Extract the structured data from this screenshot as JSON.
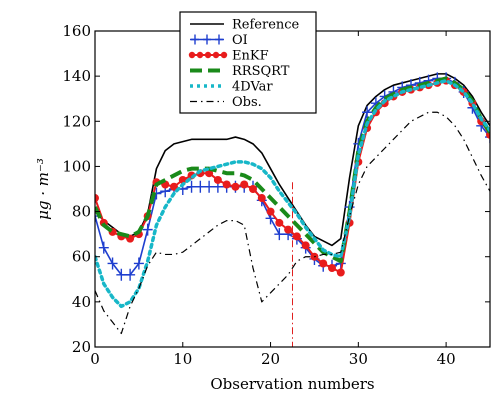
{
  "chart_data": {
    "type": "line",
    "xlabel": "Observation numbers",
    "ylabel": "μg · m⁻³",
    "xlim": [
      0,
      45
    ],
    "ylim": [
      20,
      160
    ],
    "x_ticks": [
      0,
      10,
      20,
      30,
      40
    ],
    "y_ticks": [
      20,
      40,
      60,
      80,
      100,
      120,
      140,
      160
    ],
    "legend_position": "top-center",
    "vertical_marker_x": 22.5,
    "series": [
      {
        "name": "Reference",
        "color": "#000000",
        "style": "solid",
        "marker": "none",
        "x": [
          0,
          1,
          2,
          3,
          4,
          5,
          6,
          7,
          8,
          9,
          10,
          11,
          12,
          13,
          14,
          15,
          16,
          17,
          18,
          19,
          20,
          21,
          22,
          23,
          24,
          25,
          26,
          27,
          28,
          29,
          30,
          31,
          32,
          33,
          34,
          35,
          36,
          37,
          38,
          39,
          40,
          41,
          42,
          43,
          44,
          45
        ],
        "y": [
          80,
          76,
          73,
          70,
          69,
          71,
          79,
          99,
          107,
          110,
          111,
          112,
          112,
          112,
          112,
          112,
          113,
          112,
          110,
          106,
          99,
          92,
          86,
          80,
          74,
          69,
          67,
          65,
          68,
          95,
          118,
          127,
          131,
          134,
          136,
          137,
          138,
          139,
          140,
          141,
          141,
          139,
          136,
          131,
          124,
          118
        ]
      },
      {
        "name": "OI",
        "color": "#1f3fcf",
        "style": "solid",
        "marker": "plus",
        "x": [
          0,
          1,
          2,
          3,
          4,
          5,
          6,
          7,
          8,
          9,
          10,
          11,
          12,
          13,
          14,
          15,
          16,
          17,
          18,
          19,
          20,
          21,
          22,
          23,
          24,
          25,
          26,
          27,
          28,
          29,
          30,
          31,
          32,
          33,
          34,
          35,
          36,
          37,
          38,
          39,
          40,
          41,
          42,
          43,
          44,
          45
        ],
        "y": [
          78,
          64,
          57,
          52,
          52,
          57,
          72,
          88,
          89,
          90,
          90,
          91,
          91,
          91,
          91,
          91,
          91,
          91,
          91,
          85,
          77,
          70,
          70,
          68,
          64,
          59,
          56,
          56,
          57,
          82,
          110,
          124,
          128,
          131,
          133,
          135,
          136,
          137,
          138,
          139,
          139,
          137,
          133,
          126,
          118,
          113
        ]
      },
      {
        "name": "EnKF",
        "color": "#e81c1c",
        "style": "solid",
        "marker": "dot",
        "x": [
          0,
          1,
          2,
          3,
          4,
          5,
          6,
          7,
          8,
          9,
          10,
          11,
          12,
          13,
          14,
          15,
          16,
          17,
          18,
          19,
          20,
          21,
          22,
          23,
          24,
          25,
          26,
          27,
          28,
          29,
          30,
          31,
          32,
          33,
          34,
          35,
          36,
          37,
          38,
          39,
          40,
          41,
          42,
          43,
          44,
          45
        ],
        "y": [
          86,
          75,
          71,
          69,
          68,
          70,
          78,
          93,
          92,
          91,
          94,
          96,
          97,
          97,
          94,
          92,
          91,
          92,
          90,
          86,
          80,
          75,
          72,
          69,
          65,
          60,
          57,
          55,
          53,
          75,
          102,
          117,
          124,
          128,
          131,
          133,
          134,
          135,
          136,
          137,
          138,
          136,
          133,
          128,
          120,
          114
        ]
      },
      {
        "name": "RRSQRT",
        "color": "#1a8a1a",
        "style": "dashed",
        "marker": "none",
        "x": [
          0,
          1,
          2,
          3,
          4,
          5,
          6,
          7,
          8,
          9,
          10,
          11,
          12,
          13,
          14,
          15,
          16,
          17,
          18,
          19,
          20,
          21,
          22,
          23,
          24,
          25,
          26,
          27,
          28,
          29,
          30,
          31,
          32,
          33,
          34,
          35,
          36,
          37,
          38,
          39,
          40,
          41,
          42,
          43,
          44,
          45
        ],
        "y": [
          82,
          74,
          71,
          70,
          69,
          71,
          78,
          92,
          94,
          96,
          98,
          99,
          99,
          99,
          98,
          97,
          97,
          96,
          94,
          90,
          86,
          82,
          78,
          74,
          70,
          66,
          62,
          60,
          58,
          80,
          107,
          120,
          126,
          130,
          132,
          134,
          135,
          136,
          137,
          138,
          139,
          137,
          134,
          129,
          121,
          115
        ]
      },
      {
        "name": "4DVar",
        "color": "#17b7c8",
        "style": "dotted",
        "marker": "none",
        "x": [
          0,
          1,
          2,
          3,
          4,
          5,
          6,
          7,
          8,
          9,
          10,
          11,
          12,
          13,
          14,
          15,
          16,
          17,
          18,
          19,
          20,
          21,
          22,
          23,
          24,
          25,
          26,
          27,
          28,
          29,
          30,
          31,
          32,
          33,
          34,
          35,
          36,
          37,
          38,
          39,
          40,
          41,
          42,
          43,
          44,
          45
        ],
        "y": [
          60,
          48,
          42,
          38,
          40,
          46,
          58,
          74,
          82,
          88,
          92,
          95,
          98,
          99,
          100,
          101,
          102,
          102,
          101,
          99,
          95,
          89,
          84,
          79,
          73,
          68,
          63,
          61,
          60,
          78,
          105,
          119,
          125,
          129,
          131,
          133,
          134,
          135,
          136,
          137,
          138,
          136,
          133,
          128,
          121,
          116
        ]
      },
      {
        "name": "Obs.",
        "color": "#000000",
        "style": "dashdot",
        "marker": "none",
        "x": [
          0,
          1,
          2,
          3,
          4,
          5,
          6,
          7,
          8,
          9,
          10,
          11,
          12,
          13,
          14,
          15,
          16,
          17,
          18,
          19,
          20,
          21,
          22,
          23,
          24,
          25,
          26,
          27,
          28,
          29,
          30,
          31,
          32,
          33,
          34,
          35,
          36,
          37,
          38,
          39,
          40,
          41,
          42,
          43,
          44,
          45
        ],
        "y": [
          45,
          36,
          31,
          26,
          38,
          46,
          56,
          62,
          61,
          61,
          62,
          65,
          68,
          71,
          74,
          76,
          76,
          74,
          55,
          40,
          44,
          48,
          52,
          58,
          60,
          60,
          61,
          61,
          62,
          78,
          92,
          100,
          104,
          108,
          112,
          116,
          120,
          122,
          124,
          124,
          122,
          118,
          112,
          104,
          96,
          89
        ]
      }
    ]
  }
}
